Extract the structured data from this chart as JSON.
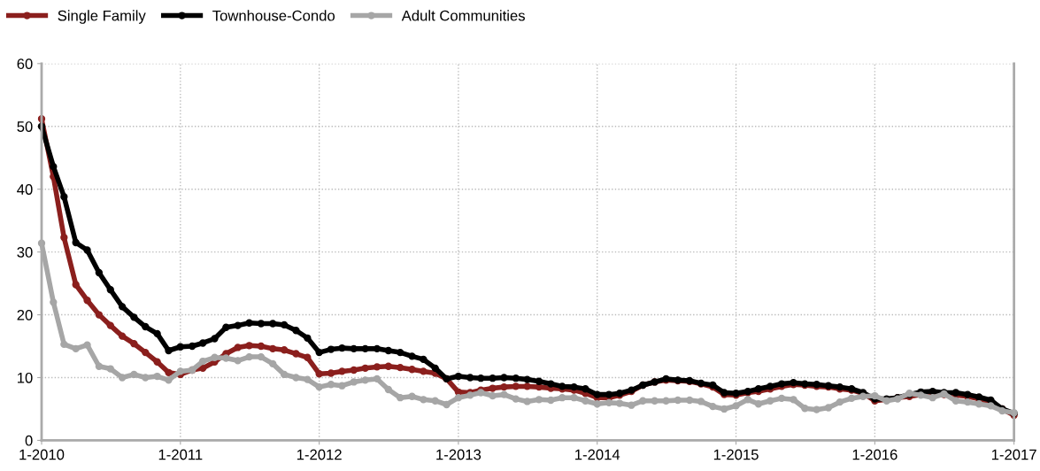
{
  "chart_data": {
    "type": "line",
    "marker": "circle",
    "line_style": "solid",
    "grid": true,
    "legend": "top left",
    "x": [
      "2010-01",
      "2010-02",
      "2010-03",
      "2010-04",
      "2010-05",
      "2010-06",
      "2010-07",
      "2010-08",
      "2010-09",
      "2010-10",
      "2010-11",
      "2010-12",
      "2011-01",
      "2011-02",
      "2011-03",
      "2011-04",
      "2011-05",
      "2011-06",
      "2011-07",
      "2011-08",
      "2011-09",
      "2011-10",
      "2011-11",
      "2011-12",
      "2012-01",
      "2012-02",
      "2012-03",
      "2012-04",
      "2012-05",
      "2012-06",
      "2012-07",
      "2012-08",
      "2012-09",
      "2012-10",
      "2012-11",
      "2012-12",
      "2013-01",
      "2013-02",
      "2013-03",
      "2013-04",
      "2013-05",
      "2013-06",
      "2013-07",
      "2013-08",
      "2013-09",
      "2013-10",
      "2013-11",
      "2013-12",
      "2014-01",
      "2014-02",
      "2014-03",
      "2014-04",
      "2014-05",
      "2014-06",
      "2014-07",
      "2014-08",
      "2014-09",
      "2014-10",
      "2014-11",
      "2014-12",
      "2015-01",
      "2015-02",
      "2015-03",
      "2015-04",
      "2015-05",
      "2015-06",
      "2015-07",
      "2015-08",
      "2015-09",
      "2015-10",
      "2015-11",
      "2015-12",
      "2016-01",
      "2016-02",
      "2016-03",
      "2016-04",
      "2016-05",
      "2016-06",
      "2016-07",
      "2016-08",
      "2016-09",
      "2016-10",
      "2016-11",
      "2016-12",
      "2017-01"
    ],
    "series": [
      {
        "name": "Single Family",
        "color": "#8b1f1d",
        "values": [
          51.2,
          42,
          32.3,
          24.8,
          22.3,
          20,
          18.3,
          16.6,
          15.4,
          14,
          12.5,
          10.8,
          10.5,
          11.2,
          11.5,
          12.5,
          13.8,
          14.8,
          15.1,
          15,
          14.6,
          14.4,
          13.8,
          13.2,
          10.6,
          10.7,
          11,
          11.2,
          11.5,
          11.7,
          11.8,
          11.6,
          11.3,
          11,
          10.7,
          9.8,
          7.7,
          7.6,
          8,
          8.3,
          8.5,
          8.6,
          8.6,
          8.5,
          8.3,
          8.2,
          8,
          7.5,
          6.8,
          6.8,
          7.2,
          7.8,
          8.8,
          9.3,
          9.6,
          9.5,
          9.4,
          9,
          8.5,
          7.3,
          7.2,
          7.6,
          7.8,
          8.2,
          8.6,
          8.9,
          8.8,
          8.6,
          8.5,
          8.2,
          8,
          7.5,
          6.3,
          6.5,
          6.8,
          7,
          7.3,
          7.5,
          7.3,
          7.2,
          7,
          6.6,
          6,
          5,
          4
        ]
      },
      {
        "name": "Townhouse-Condo",
        "color": "#000000",
        "values": [
          50,
          43.6,
          38.8,
          31.5,
          30.3,
          26.7,
          24,
          21.3,
          19.6,
          18.1,
          17,
          14.3,
          14.9,
          15,
          15.5,
          16.2,
          18,
          18.3,
          18.7,
          18.6,
          18.6,
          18.4,
          17.5,
          16.3,
          14,
          14.5,
          14.7,
          14.6,
          14.6,
          14.6,
          14.3,
          14,
          13.4,
          12.9,
          11.5,
          9.8,
          10.2,
          10,
          9.9,
          9.9,
          10,
          9.9,
          9.7,
          9.4,
          9,
          8.6,
          8.5,
          8.2,
          7.3,
          7.3,
          7.5,
          8,
          8.8,
          9.3,
          9.8,
          9.6,
          9.5,
          9.1,
          8.8,
          7.6,
          7.5,
          7.8,
          8.2,
          8.6,
          9,
          9.2,
          9,
          8.9,
          8.7,
          8.5,
          8.2,
          7.6,
          6.6,
          6.6,
          6.8,
          7.3,
          7.7,
          7.8,
          7.6,
          7.6,
          7.3,
          6.9,
          6.4,
          5,
          4.3
        ]
      },
      {
        "name": "Adult Communities",
        "color": "#a6a6a6",
        "values": [
          31.4,
          22,
          15.3,
          14.6,
          15.2,
          11.8,
          11.4,
          10,
          10.5,
          10,
          10.2,
          9.6,
          11,
          11.2,
          12.6,
          13.2,
          13.1,
          12.7,
          13.3,
          13.3,
          12.2,
          10.5,
          10,
          9.7,
          8.5,
          8.9,
          8.7,
          9.3,
          9.6,
          9.8,
          8.1,
          6.8,
          7,
          6.5,
          6.3,
          5.7,
          6.8,
          7.2,
          7.6,
          7.1,
          7.3,
          6.6,
          6.2,
          6.5,
          6.4,
          6.8,
          6.8,
          6.3,
          5.8,
          6,
          5.9,
          5.6,
          6.3,
          6.3,
          6.3,
          6.4,
          6.4,
          6.2,
          5.4,
          5,
          5.5,
          6.5,
          5.8,
          6.3,
          6.7,
          6.5,
          5.1,
          4.9,
          5.2,
          6.1,
          6.7,
          7,
          7.1,
          6.3,
          6.6,
          7.5,
          7.2,
          6.8,
          7.4,
          6.3,
          6.1,
          5.8,
          5.5,
          4.7,
          4.4
        ]
      }
    ],
    "xlim": [
      "2010-01",
      "2017-01"
    ],
    "xticks": [
      {
        "value": "2010-01",
        "label": "1-2010"
      },
      {
        "value": "2011-01",
        "label": "1-2011"
      },
      {
        "value": "2012-01",
        "label": "1-2012"
      },
      {
        "value": "2013-01",
        "label": "1-2013"
      },
      {
        "value": "2014-01",
        "label": "1-2014"
      },
      {
        "value": "2015-01",
        "label": "1-2015"
      },
      {
        "value": "2016-01",
        "label": "1-2016"
      },
      {
        "value": "2017-01",
        "label": "1-2017"
      }
    ],
    "ylim": [
      0,
      60
    ],
    "yticks": [
      0,
      10,
      20,
      30,
      40,
      50,
      60
    ]
  }
}
